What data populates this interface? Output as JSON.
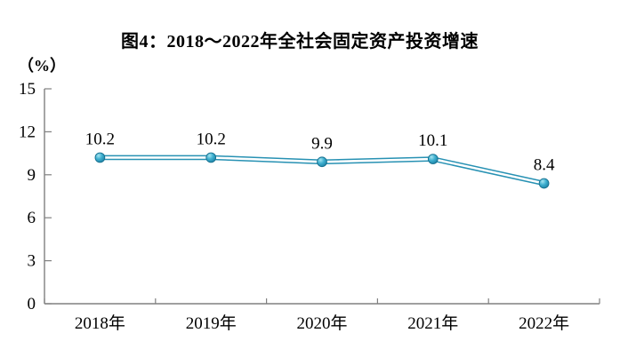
{
  "chart_data": {
    "type": "line",
    "title": "图4：2018～2022年全社会固定资产投资增速",
    "y_unit_label": "（%）",
    "xlabel": "",
    "ylabel": "",
    "categories": [
      "2018年",
      "2019年",
      "2020年",
      "2021年",
      "2022年"
    ],
    "series": [
      {
        "name": "全社会固定资产投资增速",
        "values": [
          10.2,
          10.2,
          9.9,
          10.1,
          8.4
        ],
        "data_labels": [
          "10.2",
          "10.2",
          "9.9",
          "10.1",
          "8.4"
        ]
      }
    ],
    "ylim": [
      0,
      15
    ],
    "yticks": [
      0,
      3,
      6,
      9,
      12,
      15
    ],
    "ytick_labels": [
      "0",
      "3",
      "6",
      "9",
      "12",
      "15"
    ],
    "grid": false,
    "legend_position": "none",
    "colors": {
      "line": "#2791B3",
      "line_inner_gap": "#ffffff",
      "marker_fill": "#3FB0D0",
      "marker_highlight": "#A6E4F0",
      "marker_shadow": "#187CA0",
      "marker_edge": "#16708F",
      "axis": "#808080",
      "text": "#000000",
      "background": "#ffffff"
    }
  }
}
